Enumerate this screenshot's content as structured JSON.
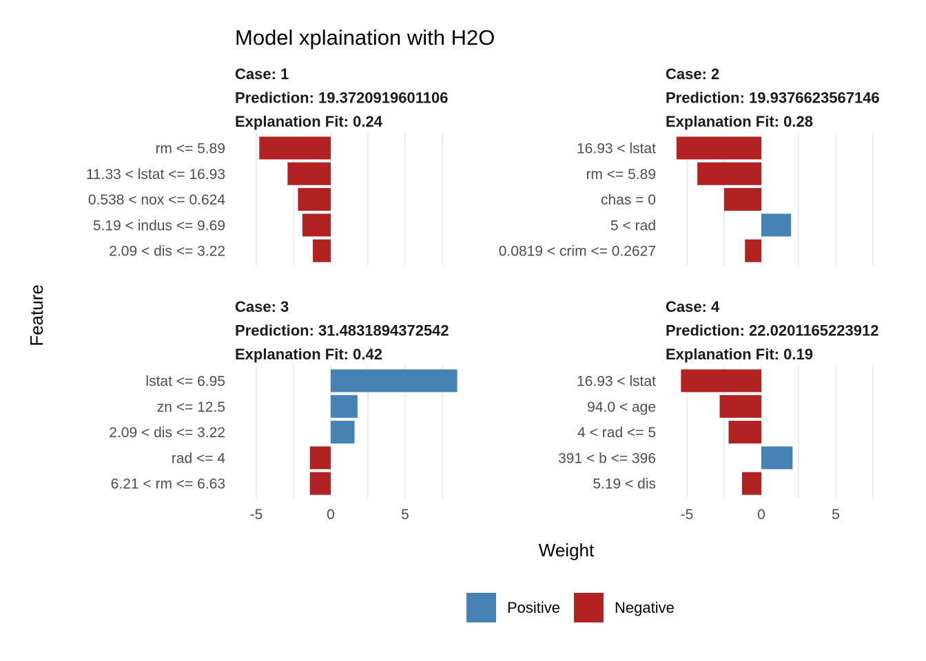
{
  "title": "Model xplaination with H2O",
  "xlabel": "Weight",
  "ylabel": "Feature",
  "legend": {
    "items": [
      {
        "label": "Positive",
        "color": "#4682B4"
      },
      {
        "label": "Negative",
        "color": "#B22222"
      }
    ]
  },
  "chart_data": {
    "type": "bar",
    "orientation": "horizontal",
    "xlim": [
      -6.0,
      8.0
    ],
    "x_ticks": [
      -5,
      0,
      5
    ],
    "x_tick_labels": [
      "-5",
      "0",
      "5"
    ],
    "grid": true,
    "legend_position": "bottom",
    "colors": {
      "positive": "#4682B4",
      "negative": "#B22222"
    },
    "panels": [
      {
        "case": "Case: 1",
        "prediction": "Prediction: 19.3720919601106",
        "fit": "Explanation Fit: 0.24",
        "features": [
          "rm <= 5.89",
          "11.33 < lstat <= 16.93",
          "0.538 < nox <= 0.624",
          "5.19 < indus <= 9.69",
          "2.09 < dis <= 3.22"
        ],
        "values": [
          -4.8,
          -2.9,
          -2.2,
          -1.9,
          -1.2
        ]
      },
      {
        "case": "Case: 2",
        "prediction": "Prediction: 19.9376623567146",
        "fit": "Explanation Fit: 0.28",
        "features": [
          "16.93 < lstat",
          "rm <= 5.89",
          "chas = 0",
          "5 < rad",
          "0.0819 < crim <= 0.2627"
        ],
        "values": [
          -5.7,
          -4.3,
          -2.5,
          2.0,
          -1.1
        ]
      },
      {
        "case": "Case: 3",
        "prediction": "Prediction: 31.4831894372542",
        "fit": "Explanation Fit: 0.42",
        "features": [
          "lstat <= 6.95",
          "zn <= 12.5",
          "2.09 < dis <= 3.22",
          "rad <= 4",
          "6.21 < rm <= 6.63"
        ],
        "values": [
          8.5,
          1.8,
          1.6,
          -1.4,
          -1.4
        ]
      },
      {
        "case": "Case: 4",
        "prediction": "Prediction: 22.0201165223912",
        "fit": "Explanation Fit: 0.19",
        "features": [
          "16.93 < lstat",
          "94.0 < age",
          "4 < rad <= 5",
          "391 < b <= 396",
          "5.19 < dis"
        ],
        "values": [
          -5.4,
          -2.8,
          -2.2,
          2.1,
          -1.3
        ]
      }
    ]
  }
}
